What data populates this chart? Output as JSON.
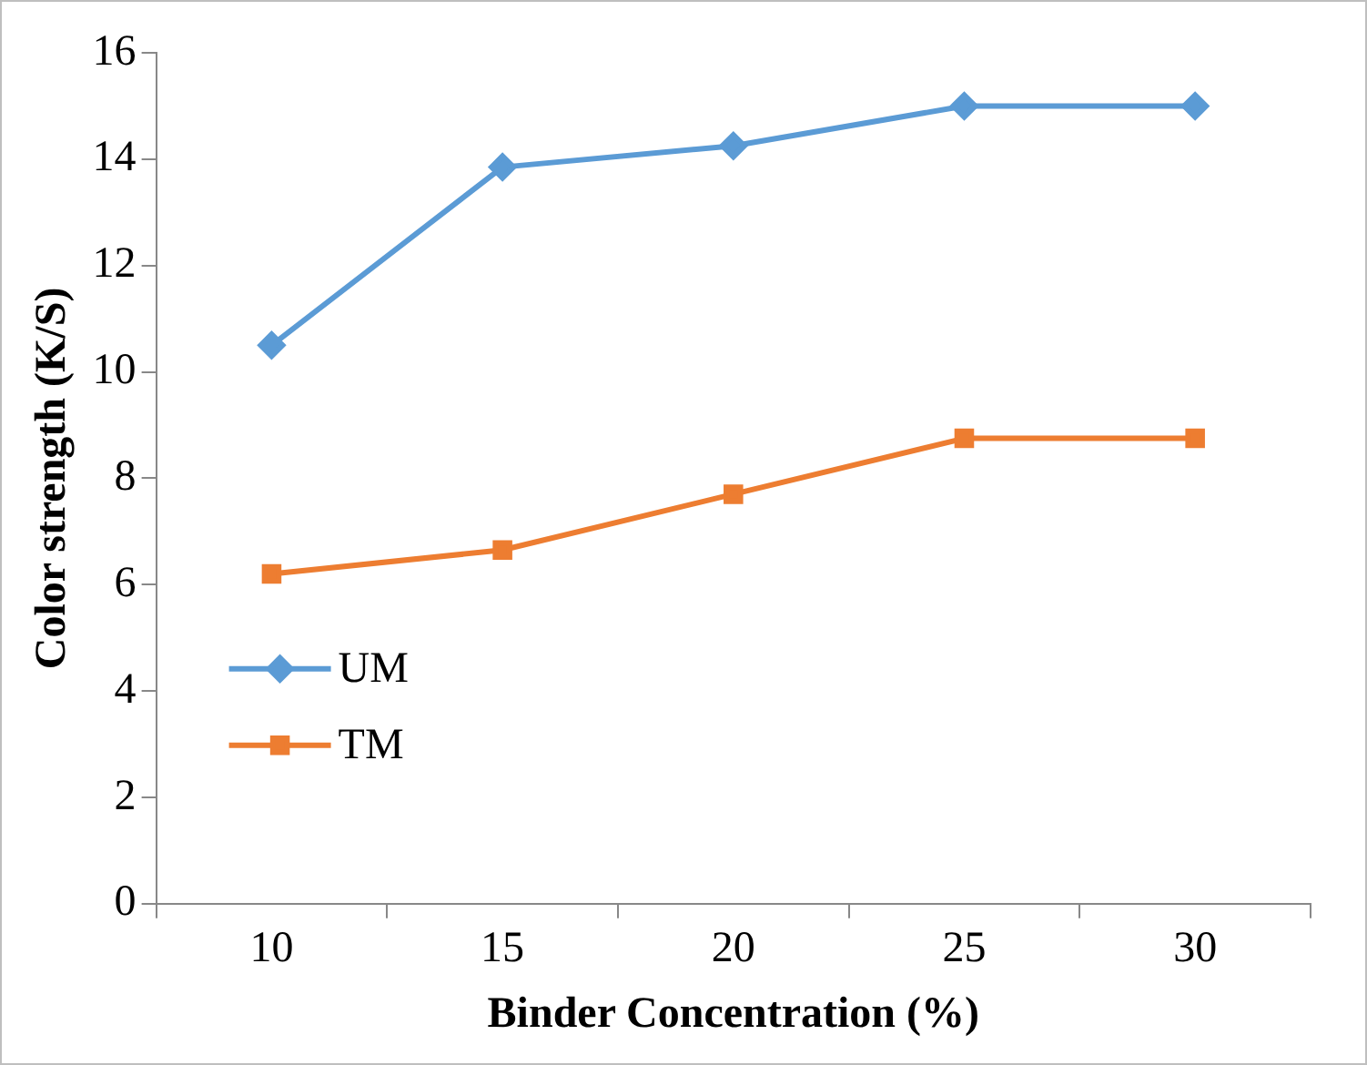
{
  "chart_data": {
    "type": "line",
    "xlabel": "Binder Concentration (%)",
    "ylabel": "Color strength (K/S)",
    "categories": [
      "10",
      "15",
      "20",
      "25",
      "30"
    ],
    "series": [
      {
        "name": "UM",
        "color": "#5b9bd5",
        "marker": "diamond",
        "values": [
          10.5,
          13.85,
          14.25,
          15.0,
          15.0
        ]
      },
      {
        "name": "TM",
        "color": "#ed7d31",
        "marker": "square",
        "values": [
          6.2,
          6.65,
          7.7,
          8.75,
          8.75
        ]
      }
    ],
    "ylim": [
      0,
      16
    ],
    "yticks": [
      0,
      2,
      4,
      6,
      8,
      10,
      12,
      14,
      16
    ],
    "grid": false,
    "legend": "bottom left",
    "line_style": "solid"
  }
}
